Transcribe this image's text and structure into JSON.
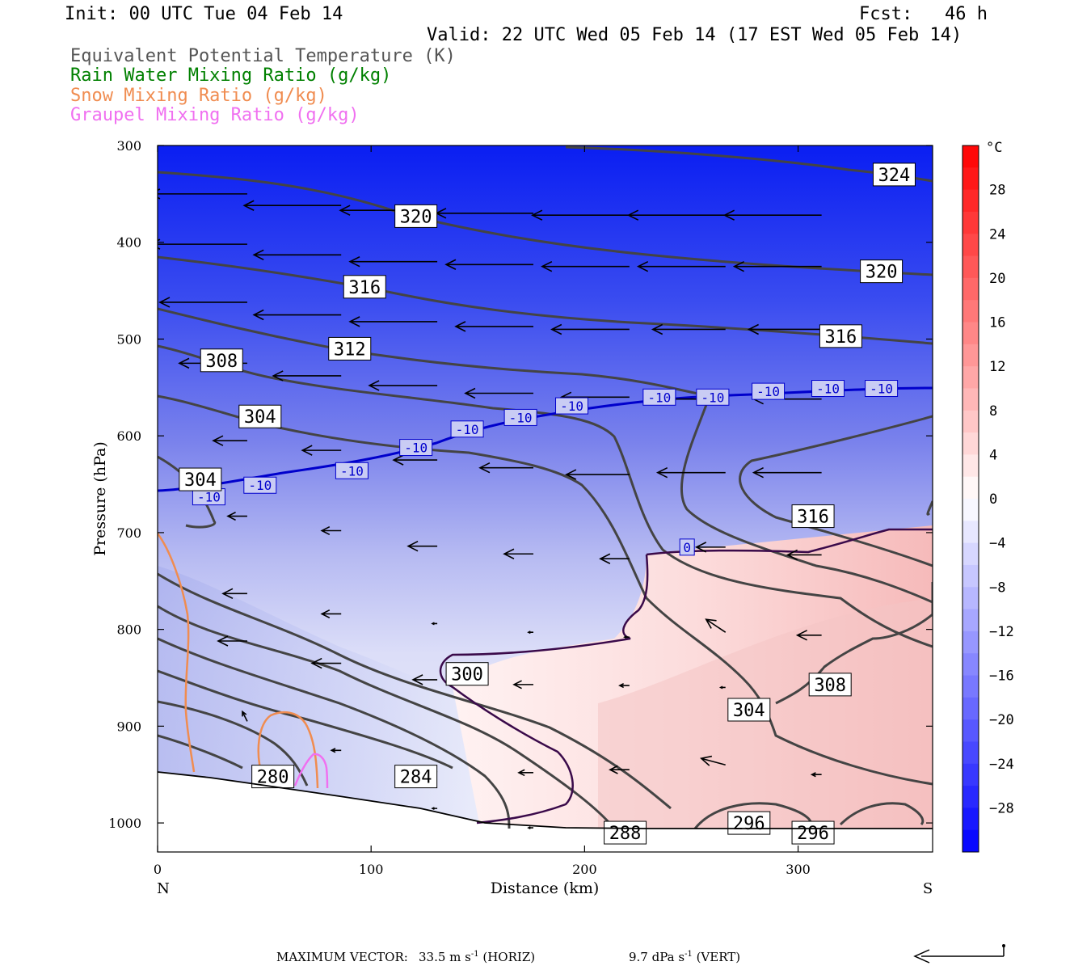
{
  "header": {
    "init": "Init: 00 UTC Tue 04 Feb 14",
    "fcst": "Fcst:   46 h",
    "valid": "Valid: 22 UTC Wed 05 Feb 14 (17 EST Wed 05 Feb 14)"
  },
  "legend": [
    {
      "label": "Equivalent Potential Temperature (K)",
      "color": "#555555"
    },
    {
      "label": "Rain Water Mixing Ratio (g/kg)",
      "color": "#008000"
    },
    {
      "label": "Snow Mixing Ratio (g/kg)",
      "color": "#f08c50"
    },
    {
      "label": "Graupel Mixing Ratio (g/kg)",
      "color": "#f070f0"
    }
  ],
  "chart_data": {
    "type": "heatmap",
    "title": "",
    "xlabel": "Distance (km)",
    "ylabel": "Pressure (hPa)",
    "xlim": [
      0,
      363
    ],
    "ylim": [
      1030,
      300
    ],
    "x_ticks": [
      0,
      100,
      200,
      300
    ],
    "y_ticks": [
      300,
      400,
      500,
      600,
      700,
      800,
      900,
      1000
    ],
    "x_end_labels": {
      "left": "N",
      "right": "S"
    },
    "colorbar": {
      "unit": "°C",
      "range": [
        -32,
        32
      ],
      "tick_values": [
        28,
        24,
        20,
        16,
        12,
        8,
        4,
        0,
        -4,
        -8,
        -12,
        -16,
        -20,
        -24,
        -28
      ],
      "tick_labels": [
        "28",
        "24",
        "20",
        "16",
        "12",
        "8",
        "4",
        "0",
        "−4",
        "−8",
        "−12",
        "−16",
        "−20",
        "−24",
        "−28"
      ]
    },
    "theta_e_labels": [
      {
        "text": "324",
        "x": 345,
        "p": 330
      },
      {
        "text": "320",
        "x": 121,
        "p": 373
      },
      {
        "text": "320",
        "x": 339,
        "p": 430
      },
      {
        "text": "316",
        "x": 97,
        "p": 446
      },
      {
        "text": "316",
        "x": 320,
        "p": 497
      },
      {
        "text": "312",
        "x": 90,
        "p": 510
      },
      {
        "text": "308",
        "x": 30,
        "p": 522
      },
      {
        "text": "304",
        "x": 48,
        "p": 580
      },
      {
        "text": "304",
        "x": 20,
        "p": 645
      },
      {
        "text": "316",
        "x": 307,
        "p": 683
      },
      {
        "text": "300",
        "x": 145,
        "p": 846
      },
      {
        "text": "308",
        "x": 315,
        "p": 857
      },
      {
        "text": "304",
        "x": 277,
        "p": 883
      },
      {
        "text": "280",
        "x": 54,
        "p": 952
      },
      {
        "text": "284",
        "x": 121,
        "p": 952
      },
      {
        "text": "296",
        "x": 277,
        "p": 1000
      },
      {
        "text": "288",
        "x": 219,
        "p": 1010
      },
      {
        "text": "296",
        "x": 307,
        "p": 1010
      }
    ],
    "isotherm_labels": [
      {
        "text": "-10",
        "x": 24,
        "p": 663
      },
      {
        "text": "-10",
        "x": 48,
        "p": 651
      },
      {
        "text": "-10",
        "x": 91,
        "p": 636
      },
      {
        "text": "-10",
        "x": 121,
        "p": 612
      },
      {
        "text": "-10",
        "x": 145,
        "p": 593
      },
      {
        "text": "-10",
        "x": 170,
        "p": 581
      },
      {
        "text": "-10",
        "x": 194,
        "p": 569
      },
      {
        "text": "-10",
        "x": 235,
        "p": 560
      },
      {
        "text": "-10",
        "x": 260,
        "p": 560
      },
      {
        "text": "-10",
        "x": 286,
        "p": 554
      },
      {
        "text": "-10",
        "x": 314,
        "p": 551
      },
      {
        "text": "-10",
        "x": 339,
        "p": 551
      },
      {
        "text": "0",
        "x": 248,
        "p": 715
      }
    ],
    "wind_vectors": [
      {
        "x": 42,
        "p": 350,
        "u": -40,
        "w": 0
      },
      {
        "x": 86,
        "p": 362,
        "u": -40,
        "w": 0
      },
      {
        "x": 131,
        "p": 367,
        "u": -40,
        "w": 0
      },
      {
        "x": 176,
        "p": 370,
        "u": -40,
        "w": 0
      },
      {
        "x": 221,
        "p": 372,
        "u": -40,
        "w": 0
      },
      {
        "x": 266,
        "p": 372,
        "u": -40,
        "w": 0
      },
      {
        "x": 311,
        "p": 372,
        "u": -40,
        "w": 0
      },
      {
        "x": 42,
        "p": 402,
        "u": -40,
        "w": 0
      },
      {
        "x": 86,
        "p": 413,
        "u": -36,
        "w": 0
      },
      {
        "x": 131,
        "p": 420,
        "u": -36,
        "w": 0
      },
      {
        "x": 176,
        "p": 423,
        "u": -36,
        "w": 0
      },
      {
        "x": 221,
        "p": 425,
        "u": -36,
        "w": 0
      },
      {
        "x": 266,
        "p": 425,
        "u": -36,
        "w": 0
      },
      {
        "x": 311,
        "p": 425,
        "u": -36,
        "w": 0
      },
      {
        "x": 42,
        "p": 462,
        "u": -36,
        "w": 0
      },
      {
        "x": 86,
        "p": 475,
        "u": -36,
        "w": 0
      },
      {
        "x": 131,
        "p": 482,
        "u": -36,
        "w": 0
      },
      {
        "x": 176,
        "p": 487,
        "u": -32,
        "w": 0
      },
      {
        "x": 221,
        "p": 490,
        "u": -32,
        "w": 0
      },
      {
        "x": 266,
        "p": 490,
        "u": -30,
        "w": 0
      },
      {
        "x": 311,
        "p": 490,
        "u": -30,
        "w": 0
      },
      {
        "x": 42,
        "p": 525,
        "u": -28,
        "w": 0
      },
      {
        "x": 86,
        "p": 538,
        "u": -28,
        "w": 0
      },
      {
        "x": 131,
        "p": 548,
        "u": -28,
        "w": 0
      },
      {
        "x": 176,
        "p": 556,
        "u": -28,
        "w": 0
      },
      {
        "x": 221,
        "p": 560,
        "u": -28,
        "w": 0
      },
      {
        "x": 266,
        "p": 562,
        "u": -28,
        "w": 0
      },
      {
        "x": 311,
        "p": 562,
        "u": -28,
        "w": 0
      },
      {
        "x": 42,
        "p": 605,
        "u": -14,
        "w": 0
      },
      {
        "x": 86,
        "p": 615,
        "u": -16,
        "w": 0
      },
      {
        "x": 131,
        "p": 625,
        "u": -18,
        "w": 0
      },
      {
        "x": 176,
        "p": 633,
        "u": -22,
        "w": 0
      },
      {
        "x": 221,
        "p": 640,
        "u": -26,
        "w": 0
      },
      {
        "x": 266,
        "p": 638,
        "u": -28,
        "w": 0
      },
      {
        "x": 311,
        "p": 638,
        "u": -28,
        "w": 0
      },
      {
        "x": 42,
        "p": 683,
        "u": -8,
        "w": 0
      },
      {
        "x": 86,
        "p": 698,
        "u": -8,
        "w": 0
      },
      {
        "x": 131,
        "p": 714,
        "u": -12,
        "w": 0
      },
      {
        "x": 176,
        "p": 722,
        "u": -12,
        "w": 0
      },
      {
        "x": 221,
        "p": 727,
        "u": -12,
        "w": 0
      },
      {
        "x": 266,
        "p": 715,
        "u": -12,
        "w": 0
      },
      {
        "x": 311,
        "p": 723,
        "u": -14,
        "w": 0
      },
      {
        "x": 42,
        "p": 763,
        "u": -10,
        "w": 0
      },
      {
        "x": 86,
        "p": 784,
        "u": -8,
        "w": 0
      },
      {
        "x": 131,
        "p": 794,
        "u": -2,
        "w": 0
      },
      {
        "x": 176,
        "p": 803,
        "u": -2,
        "w": 0
      },
      {
        "x": 221,
        "p": 808,
        "u": -2,
        "w": 0
      },
      {
        "x": 266,
        "p": 803,
        "u": -8,
        "w": 4
      },
      {
        "x": 311,
        "p": 806,
        "u": -10,
        "w": 0
      },
      {
        "x": 42,
        "p": 812,
        "u": -12,
        "w": 0
      },
      {
        "x": 86,
        "p": 835,
        "u": -12,
        "w": 0
      },
      {
        "x": 131,
        "p": 852,
        "u": -10,
        "w": 0
      },
      {
        "x": 176,
        "p": 857,
        "u": -8,
        "w": 0
      },
      {
        "x": 221,
        "p": 858,
        "u": -4,
        "w": 0
      },
      {
        "x": 266,
        "p": 860,
        "u": -2,
        "w": 0
      },
      {
        "x": 311,
        "p": 860,
        "u": -4,
        "w": 0
      },
      {
        "x": 42,
        "p": 895,
        "u": -2,
        "w": 3
      },
      {
        "x": 86,
        "p": 925,
        "u": -4,
        "w": 0
      },
      {
        "x": 131,
        "p": 947,
        "u": -6,
        "w": 0
      },
      {
        "x": 176,
        "p": 948,
        "u": -6,
        "w": 0
      },
      {
        "x": 221,
        "p": 945,
        "u": -8,
        "w": 0
      },
      {
        "x": 266,
        "p": 940,
        "u": -10,
        "w": 2
      },
      {
        "x": 311,
        "p": 950,
        "u": -4,
        "w": 0
      },
      {
        "x": 131,
        "p": 985,
        "u": -2,
        "w": 0
      },
      {
        "x": 176,
        "p": 1005,
        "u": -2,
        "w": 0
      }
    ]
  },
  "footer": {
    "max_vector_label": "MAXIMUM VECTOR:",
    "horiz_value": "33.5 m s",
    "horiz_exp": "-1",
    "horiz_tag": " (HORIZ)",
    "vert_value": "9.7 dPa s",
    "vert_exp": "-1",
    "vert_tag": " (VERT)"
  }
}
